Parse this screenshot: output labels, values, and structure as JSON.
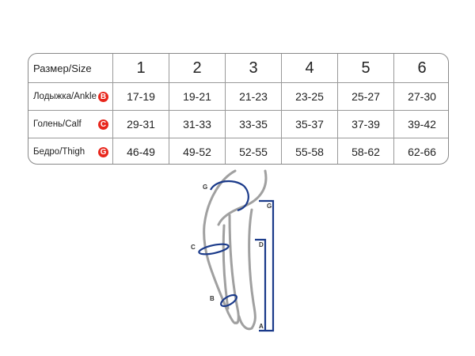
{
  "table": {
    "header_label": "Размер/Size",
    "sizes": [
      "1",
      "2",
      "3",
      "4",
      "5",
      "6"
    ],
    "rows": [
      {
        "label": "Лодыжка/Ankle",
        "badge": "B",
        "values": [
          "17-19",
          "19-21",
          "21-23",
          "23-25",
          "25-27",
          "27-30"
        ]
      },
      {
        "label": "Голень/Calf",
        "badge": "C",
        "values": [
          "29-31",
          "31-33",
          "33-35",
          "35-37",
          "37-39",
          "39-42"
        ]
      },
      {
        "label": "Бедро/Thigh",
        "badge": "G",
        "values": [
          "46-49",
          "49-52",
          "52-55",
          "55-58",
          "58-62",
          "62-66"
        ]
      }
    ]
  },
  "diagram": {
    "labels": {
      "g_circ": "G",
      "c_circ": "C",
      "b_circ": "B",
      "g_len": "G",
      "d_len": "D",
      "a_len": "A"
    },
    "colors": {
      "measure": "#1a3a8a",
      "badge": "#e8261c",
      "leg": "#a0a0a0"
    }
  }
}
